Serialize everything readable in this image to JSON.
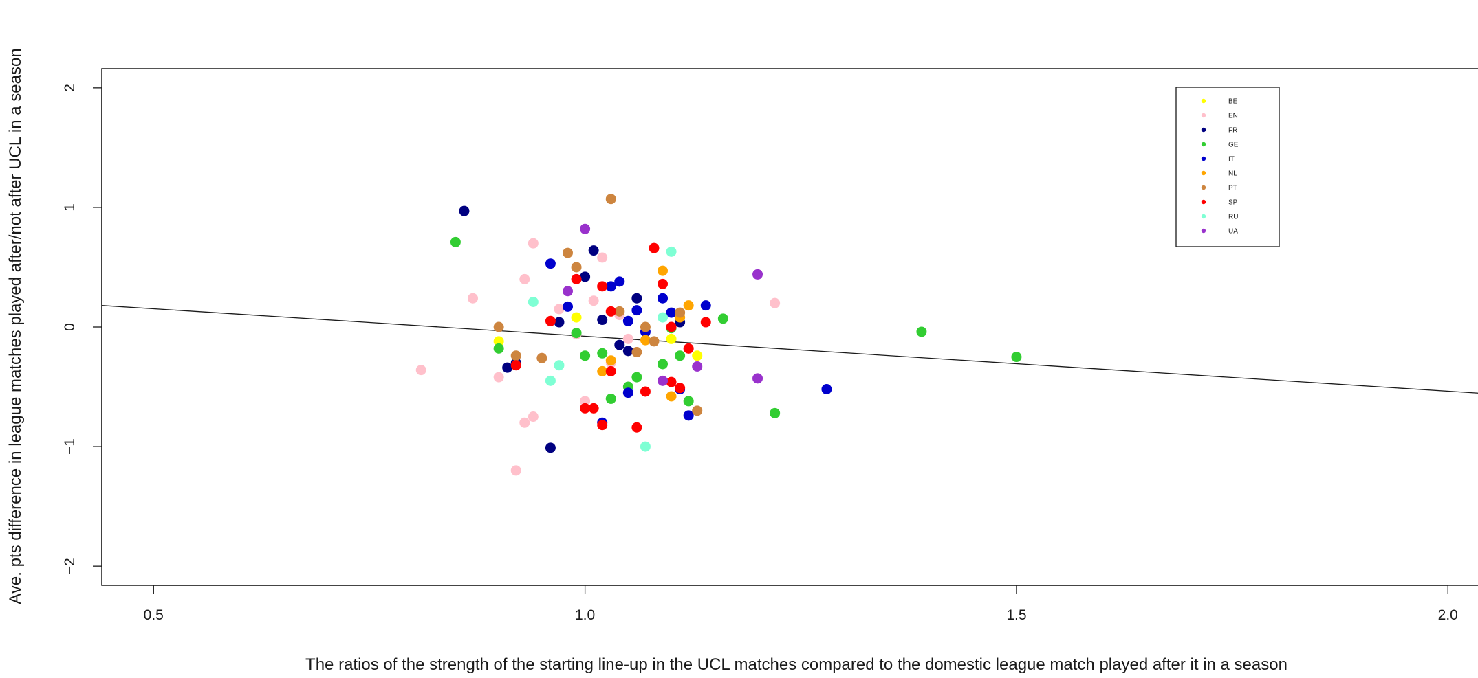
{
  "chart_data": {
    "type": "scatter",
    "title": "",
    "xlabel": "The ratios of the strength of the starting line-up in the UCL matches compared to the domestic league match played after it in a season",
    "ylabel": "Ave. pts difference in league matches played after/not after UCL in a season",
    "xlim": [
      0.44,
      2.05
    ],
    "ylim": [
      -2.16,
      2.16
    ],
    "x_ticks": [
      0.5,
      1.0,
      1.5,
      2.0
    ],
    "x_tick_labels": [
      "0.5",
      "1.0",
      "1.5",
      "2.0"
    ],
    "y_ticks": [
      -2,
      -1,
      0,
      1,
      2
    ],
    "y_tick_labels": [
      "−2",
      "−1",
      "0",
      "1",
      "2"
    ],
    "grid": false,
    "legend_position": "top-right",
    "trend_line": {
      "x": [
        0.44,
        2.05
      ],
      "y": [
        0.18,
        -0.56
      ]
    },
    "series": [
      {
        "name": "BE",
        "color": "#ffff00",
        "points": [
          [
            0.9,
            -0.12
          ],
          [
            0.99,
            0.08
          ],
          [
            1.13,
            -0.24
          ],
          [
            1.1,
            -0.1
          ]
        ]
      },
      {
        "name": "EN",
        "color": "#ffc0cb",
        "points": [
          [
            0.81,
            -0.36
          ],
          [
            0.87,
            0.24
          ],
          [
            0.9,
            -0.42
          ],
          [
            0.93,
            -0.8
          ],
          [
            0.94,
            0.7
          ],
          [
            0.93,
            0.4
          ],
          [
            0.95,
            -0.26
          ],
          [
            0.94,
            -0.75
          ],
          [
            0.92,
            -1.2
          ],
          [
            0.99,
            -0.06
          ],
          [
            1.01,
            0.22
          ],
          [
            1.02,
            0.58
          ],
          [
            1.03,
            -0.3
          ],
          [
            1.05,
            -0.1
          ],
          [
            1.22,
            0.2
          ],
          [
            1.0,
            -0.62
          ],
          [
            0.97,
            0.15
          ],
          [
            1.04,
            0.1
          ]
        ]
      },
      {
        "name": "FR",
        "color": "#000080",
        "points": [
          [
            0.86,
            0.97
          ],
          [
            0.92,
            -0.3
          ],
          [
            0.96,
            -1.01
          ],
          [
            0.97,
            0.04
          ],
          [
            1.0,
            0.42
          ],
          [
            1.01,
            0.64
          ],
          [
            1.02,
            0.06
          ],
          [
            1.04,
            -0.15
          ],
          [
            1.05,
            -0.2
          ],
          [
            1.06,
            0.24
          ],
          [
            1.11,
            0.04
          ],
          [
            0.91,
            -0.34
          ]
        ]
      },
      {
        "name": "GE",
        "color": "#32cd32",
        "points": [
          [
            0.85,
            0.71
          ],
          [
            0.9,
            -0.18
          ],
          [
            0.99,
            -0.05
          ],
          [
            1.0,
            -0.24
          ],
          [
            1.02,
            -0.22
          ],
          [
            1.03,
            -0.6
          ],
          [
            1.05,
            -0.5
          ],
          [
            1.06,
            -0.42
          ],
          [
            1.09,
            -0.31
          ],
          [
            1.11,
            -0.24
          ],
          [
            1.12,
            -0.62
          ],
          [
            1.16,
            0.07
          ],
          [
            1.22,
            -0.72
          ],
          [
            1.39,
            -0.04
          ],
          [
            1.5,
            -0.25
          ],
          [
            1.1,
            -0.01
          ]
        ]
      },
      {
        "name": "IT",
        "color": "#0000cd",
        "points": [
          [
            0.96,
            0.53
          ],
          [
            0.98,
            0.17
          ],
          [
            1.03,
            0.34
          ],
          [
            1.04,
            0.38
          ],
          [
            1.06,
            0.14
          ],
          [
            1.05,
            -0.55
          ],
          [
            1.07,
            -0.04
          ],
          [
            1.09,
            0.24
          ],
          [
            1.1,
            0.12
          ],
          [
            1.11,
            -0.52
          ],
          [
            1.12,
            -0.74
          ],
          [
            1.14,
            0.18
          ],
          [
            1.28,
            -0.52
          ],
          [
            1.05,
            0.05
          ],
          [
            1.02,
            -0.8
          ]
        ]
      },
      {
        "name": "NL",
        "color": "#ffa500",
        "points": [
          [
            1.02,
            -0.37
          ],
          [
            1.03,
            -0.28
          ],
          [
            1.07,
            -0.11
          ],
          [
            1.09,
            0.47
          ],
          [
            1.1,
            -0.58
          ],
          [
            1.12,
            0.18
          ],
          [
            1.11,
            0.08
          ]
        ]
      },
      {
        "name": "PT",
        "color": "#cd853f",
        "points": [
          [
            0.9,
            0.0
          ],
          [
            0.92,
            -0.24
          ],
          [
            0.95,
            -0.26
          ],
          [
            0.98,
            0.62
          ],
          [
            0.99,
            0.5
          ],
          [
            1.03,
            1.07
          ],
          [
            1.04,
            0.13
          ],
          [
            1.06,
            -0.21
          ],
          [
            1.07,
            0.0
          ],
          [
            1.11,
            0.12
          ],
          [
            1.13,
            -0.7
          ],
          [
            1.08,
            -0.12
          ]
        ]
      },
      {
        "name": "SP",
        "color": "#ff0000",
        "points": [
          [
            0.92,
            -0.32
          ],
          [
            0.96,
            0.05
          ],
          [
            0.99,
            0.4
          ],
          [
            1.0,
            -0.68
          ],
          [
            1.01,
            -0.68
          ],
          [
            1.02,
            0.34
          ],
          [
            1.02,
            -0.82
          ],
          [
            1.03,
            0.13
          ],
          [
            1.03,
            -0.37
          ],
          [
            1.06,
            -0.84
          ],
          [
            1.07,
            -0.54
          ],
          [
            1.08,
            0.66
          ],
          [
            1.09,
            0.36
          ],
          [
            1.1,
            -0.46
          ],
          [
            1.11,
            -0.51
          ],
          [
            1.12,
            -0.18
          ],
          [
            1.14,
            0.04
          ],
          [
            1.1,
            0.0
          ]
        ]
      },
      {
        "name": "RU",
        "color": "#7fffd4",
        "points": [
          [
            0.94,
            0.21
          ],
          [
            0.96,
            -0.45
          ],
          [
            0.97,
            -0.32
          ],
          [
            1.07,
            -1.0
          ],
          [
            1.1,
            0.63
          ],
          [
            1.09,
            0.08
          ]
        ]
      },
      {
        "name": "UA",
        "color": "#9932cc",
        "points": [
          [
            0.98,
            0.3
          ],
          [
            1.0,
            0.82
          ],
          [
            1.09,
            -0.45
          ],
          [
            1.13,
            -0.33
          ],
          [
            1.2,
            0.44
          ],
          [
            1.2,
            -0.43
          ]
        ]
      }
    ]
  }
}
